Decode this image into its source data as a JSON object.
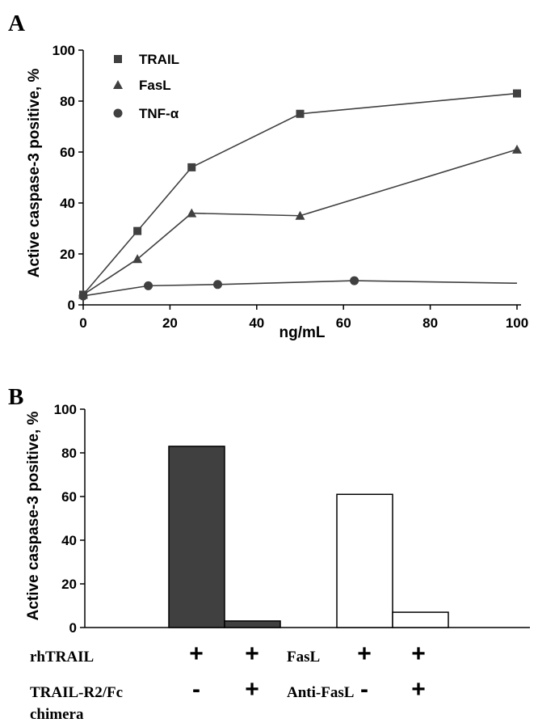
{
  "chart_data": [
    {
      "panel": "A",
      "type": "line",
      "xlabel": "ng/mL",
      "ylabel": "Active caspase-3 positive, %",
      "xlim": [
        0,
        100
      ],
      "ylim": [
        0,
        100
      ],
      "xticks": [
        "0",
        "20",
        "40",
        "60",
        "80",
        "100"
      ],
      "yticks": [
        "0",
        "20",
        "40",
        "60",
        "80",
        "100"
      ],
      "grid": false,
      "legend_position": "top-left",
      "series": [
        {
          "name": "TRAIL",
          "marker": "square",
          "x": [
            0,
            12.5,
            25,
            50,
            100
          ],
          "y": [
            4,
            29,
            54,
            75,
            83
          ]
        },
        {
          "name": "FasL",
          "marker": "triangle",
          "x": [
            0,
            12.5,
            25,
            50,
            100
          ],
          "y": [
            4,
            18,
            36,
            35,
            61
          ]
        },
        {
          "name": "TNF-α",
          "marker": "circle",
          "x": [
            0,
            15,
            31,
            62.5
          ],
          "y": [
            3.5,
            7.5,
            8,
            9.5
          ],
          "line_extends_to_x": 100,
          "line_end_y": 8.5
        }
      ]
    },
    {
      "panel": "B",
      "type": "bar",
      "ylabel": "Active caspase-3 positive, %",
      "ylim": [
        0,
        100
      ],
      "yticks": [
        "0",
        "20",
        "40",
        "60",
        "80",
        "100"
      ],
      "grid": false,
      "bars": [
        {
          "value": 83,
          "color": "#404040"
        },
        {
          "value": 3,
          "color": "#404040"
        },
        {
          "value": 61,
          "color": "#ffffff"
        },
        {
          "value": 7,
          "color": "#ffffff"
        }
      ],
      "treatment_rows": [
        {
          "labels": [
            "rhTRAIL",
            "FasL"
          ],
          "signs": [
            "+",
            "+",
            "+",
            "+"
          ]
        },
        {
          "labels": [
            "TRAIL-R2/Fc",
            "Anti-FasL"
          ],
          "label_continuation": "chimera",
          "signs": [
            "-",
            "+",
            "-",
            "+"
          ]
        }
      ]
    }
  ]
}
